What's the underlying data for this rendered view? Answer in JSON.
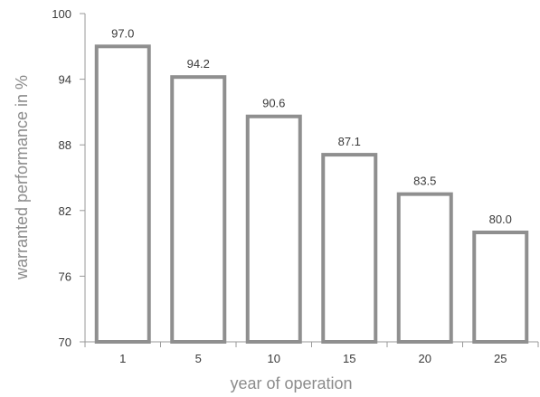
{
  "chart_data": {
    "type": "bar",
    "categories": [
      "1",
      "5",
      "10",
      "15",
      "20",
      "25"
    ],
    "values": [
      97.0,
      94.2,
      90.6,
      87.1,
      83.5,
      80.0
    ],
    "value_labels": [
      "97.0",
      "94.2",
      "90.6",
      "87.1",
      "83.5",
      "80.0"
    ],
    "xlabel": "year of operation",
    "ylabel": "warranted performance in %",
    "ylim": [
      70,
      100
    ],
    "yticks": [
      70,
      76,
      82,
      88,
      94,
      100
    ],
    "ytick_labels": [
      "70",
      "76",
      "82",
      "88",
      "94",
      "100"
    ],
    "grid": false,
    "legend": "none",
    "colors": {
      "bar_stroke": "#8f8f8f",
      "bar_fill": "#ffffff",
      "axis": "#999999",
      "title_text": "#8c8c8c"
    }
  }
}
